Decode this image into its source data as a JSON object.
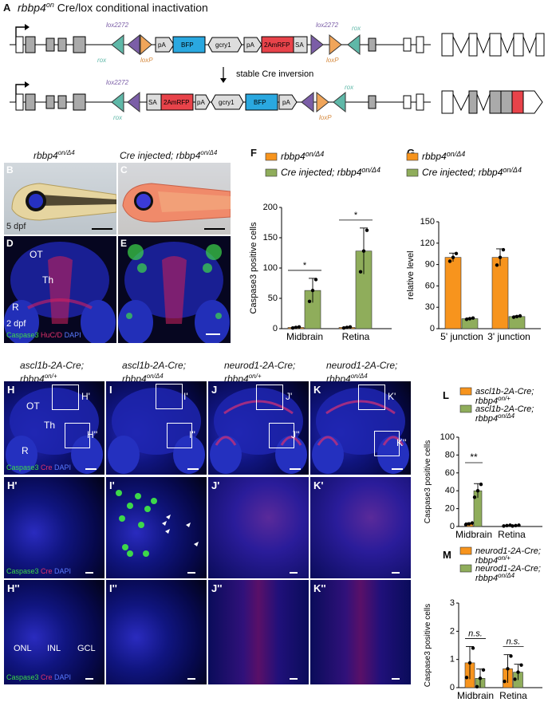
{
  "figure": {
    "panel_a": {
      "letter": "A",
      "title_gene": "rbbp4",
      "title_sup": "on",
      "title_rest": " Cre/lox conditional inactivation",
      "arrow_text": "stable Cre inversion",
      "labels": {
        "lox2272": "lox2272",
        "rox": "rox",
        "loxP": "loxP",
        "pA": "pA",
        "BFP": "BFP",
        "gcry1": "gcry1",
        "twoAmRFP": "2AmRFP",
        "SA": "SA"
      }
    },
    "panels_bc": {
      "letter_b": "B",
      "letter_c": "C",
      "title_b_gene": "rbbp4",
      "title_b_sup": "on/Δ4",
      "title_c_pre": "Cre injected; ",
      "title_c_gene": "rbbp4",
      "title_c_sup": "on/Δ4",
      "dpf": "5 dpf"
    },
    "panels_de": {
      "letter_d": "D",
      "letter_e": "E",
      "ot": "OT",
      "th": "Th",
      "r": "R",
      "dpf": "2 dpf",
      "stain_caspase": "Caspase3",
      "stain_huc": "HuC/D",
      "stain_dapi": "DAPI"
    },
    "panels_hk": {
      "titles": [
        {
          "gene": "ascl1b-2A-Cre;",
          "gene2": "rbbp4",
          "sup": "on/+"
        },
        {
          "gene": "ascl1b-2A-Cre;",
          "gene2": "rbbp4",
          "sup": "on/Δ4"
        },
        {
          "gene": "neurod1-2A-Cre;",
          "gene2": "rbbp4",
          "sup": "on/+"
        },
        {
          "gene": "neurod1-2A-Cre;",
          "gene2": "rbbp4",
          "sup": "on/Δ4"
        }
      ],
      "row1_letters": [
        "H",
        "I",
        "J",
        "K"
      ],
      "row1_box1": [
        "H'",
        "I'",
        "J'",
        "K'"
      ],
      "row1_box2": [
        "H''",
        "I''",
        "J''",
        "K''"
      ],
      "row2_letters": [
        "H'",
        "I'",
        "J'",
        "K'"
      ],
      "row3_letters": [
        "H''",
        "I''",
        "J''",
        "K''"
      ],
      "ot": "OT",
      "th": "Th",
      "r": "R",
      "onl": "ONL",
      "inl": "INL",
      "gcl": "GCL",
      "stain_caspase": "Caspase3",
      "stain_cre": "Cre",
      "stain_dapi": "DAPI"
    },
    "colors": {
      "orange": "#f7941d",
      "green": "#8fad5b",
      "lox2272": "#7b5ea7",
      "rox": "#5fb8a8",
      "loxP": "#e8a062",
      "bfp": "#2aa8e0",
      "rfp": "#e8434a"
    }
  },
  "chart_data": [
    {
      "id": "F",
      "type": "bar",
      "letter": "F",
      "legend": [
        {
          "gene": "rbbp4",
          "sup": "on/Δ4"
        },
        {
          "pre": "Cre injected;",
          "gene": "rbbp4",
          "sup": "on/Δ4"
        }
      ],
      "categories": [
        "Midbrain",
        "Retina"
      ],
      "series": [
        {
          "values": [
            2,
            2
          ]
        },
        {
          "values": [
            63,
            128
          ]
        }
      ],
      "errors": [
        [
          1,
          1
        ],
        [
          20,
          38
        ]
      ],
      "ylabel": "Caspase3 positive  cells",
      "ylim": [
        0,
        200
      ],
      "yticks": [
        "0",
        "50",
        "100",
        "150",
        "200"
      ],
      "sig": [
        "*",
        "*"
      ]
    },
    {
      "id": "G",
      "type": "bar",
      "letter": "G",
      "legend": [
        {
          "gene": "rbbp4",
          "sup": "on/Δ4"
        },
        {
          "pre": "Cre injected;",
          "gene": "rbbp4",
          "sup": "on/Δ4"
        }
      ],
      "categories": [
        "5' junction",
        "3' junction"
      ],
      "series": [
        {
          "values": [
            100,
            100
          ]
        },
        {
          "values": [
            14,
            17
          ]
        }
      ],
      "errors": [
        [
          6,
          12
        ],
        [
          1,
          1
        ]
      ],
      "ylabel": "relative level",
      "ylim": [
        0,
        150
      ],
      "yticks": [
        "0",
        "30",
        "60",
        "90",
        "120",
        "150"
      ]
    },
    {
      "id": "L",
      "type": "bar",
      "letter": "L",
      "legend": [
        {
          "gene": "ascl1b-2A-Cre;",
          "gene2": "rbbp4",
          "sup": "on/+"
        },
        {
          "gene": "ascl1b-2A-Cre;",
          "gene2": "rbbp4",
          "sup": "on/Δ4"
        }
      ],
      "categories": [
        "Midbrain",
        "Retina"
      ],
      "series": [
        {
          "values": [
            3,
            1
          ]
        },
        {
          "values": [
            40,
            1
          ]
        }
      ],
      "errors": [
        [
          1,
          0.5
        ],
        [
          8,
          0.5
        ]
      ],
      "ylabel": "Caspase3 positive  cells",
      "ylim": [
        0,
        100
      ],
      "yticks": [
        "0",
        "20",
        "40",
        "60",
        "80",
        "100"
      ],
      "sig": [
        "**"
      ]
    },
    {
      "id": "M",
      "type": "bar",
      "letter": "M",
      "legend": [
        {
          "gene": "neurod1-2A-Cre;",
          "gene2": "rbbp4",
          "sup": "on/+"
        },
        {
          "gene": "neurod1-2A-Cre;",
          "gene2": "rbbp4",
          "sup": "on/Δ4"
        }
      ],
      "categories": [
        "Midbrain",
        "Retina"
      ],
      "series": [
        {
          "values": [
            0.88,
            0.67
          ]
        },
        {
          "values": [
            0.33,
            0.55
          ]
        }
      ],
      "errors": [
        [
          0.58,
          0.5
        ],
        [
          0.33,
          0.28
        ]
      ],
      "ylabel": "Caspase3 positive  cells",
      "ylim": [
        0,
        3
      ],
      "yticks": [
        "0",
        "1",
        "2",
        "3"
      ],
      "sig": [
        "n.s.",
        "n.s."
      ]
    }
  ]
}
